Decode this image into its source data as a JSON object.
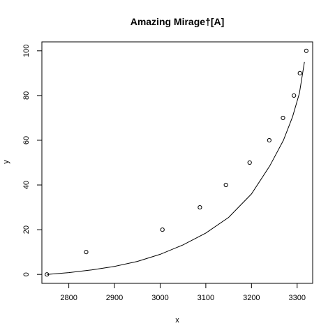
{
  "chart_data": {
    "type": "scatter",
    "title": "Amazing Mirage†[A]",
    "xlabel": "x",
    "ylabel": "y",
    "xlim": [
      2741,
      3334
    ],
    "ylim": [
      -4,
      104
    ],
    "x_ticks": [
      2800,
      2900,
      3000,
      3100,
      3200,
      3300
    ],
    "y_ticks": [
      0,
      20,
      40,
      60,
      80,
      100
    ],
    "grid": false,
    "legend": "none",
    "points": {
      "x": [
        2752,
        2838,
        3005,
        3087,
        3144,
        3196,
        3239,
        3269,
        3293,
        3306,
        3320
      ],
      "y": [
        0,
        10,
        20,
        30,
        40,
        50,
        60,
        70,
        80,
        90,
        100
      ]
    },
    "curve": {
      "x": [
        2752,
        2800,
        2850,
        2900,
        2950,
        3000,
        3050,
        3100,
        3150,
        3200,
        3240,
        3270,
        3290,
        3305,
        3316
      ],
      "y": [
        0,
        0.8,
        2,
        3.6,
        5.8,
        9,
        13.2,
        18.5,
        25.5,
        36,
        48.5,
        60,
        70.5,
        81,
        95
      ]
    }
  }
}
